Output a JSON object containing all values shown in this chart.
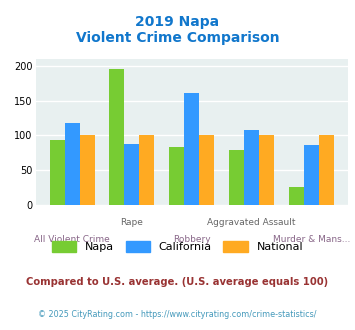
{
  "title_line1": "2019 Napa",
  "title_line2": "Violent Crime Comparison",
  "categories": [
    "All Violent Crime",
    "Rape",
    "Robbery",
    "Aggravated Assault",
    "Murder & Mans..."
  ],
  "napa": [
    93,
    196,
    84,
    79,
    26
  ],
  "california": [
    118,
    87,
    162,
    108,
    86
  ],
  "national": [
    100,
    100,
    100,
    100,
    100
  ],
  "color_napa": "#77cc33",
  "color_california": "#3399ff",
  "color_national": "#ffaa22",
  "ylim": [
    0,
    210
  ],
  "yticks": [
    0,
    50,
    100,
    150,
    200
  ],
  "background_color": "#e8f0f0",
  "footnote1": "Compared to U.S. average. (U.S. average equals 100)",
  "footnote2": "© 2025 CityRating.com - https://www.cityrating.com/crime-statistics/",
  "title_color": "#1177cc",
  "footnote1_color": "#993333",
  "footnote2_color": "#4499bb",
  "xlabel_top_color": "#666666",
  "xlabel_bot_color": "#886688"
}
